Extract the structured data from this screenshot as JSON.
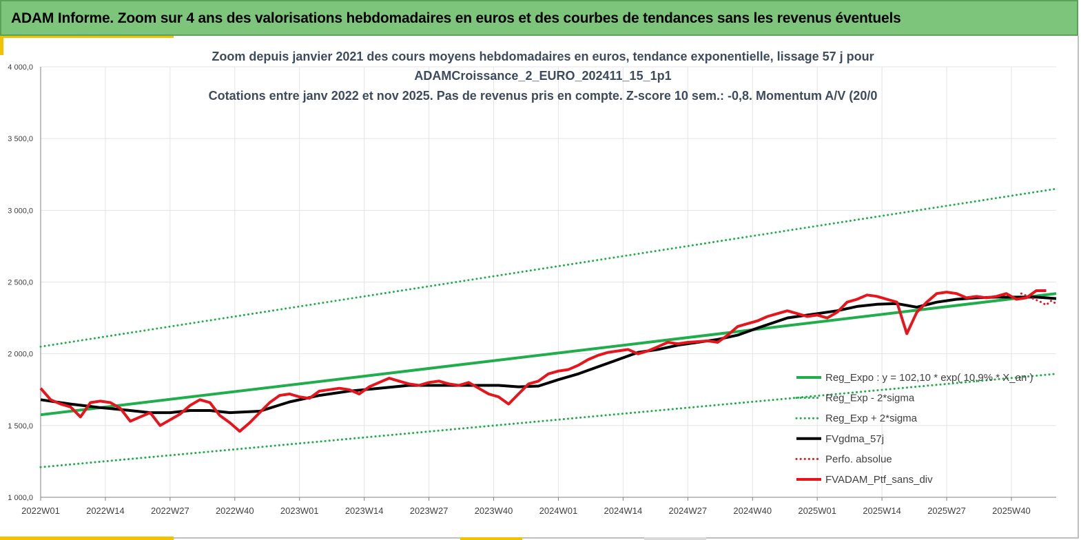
{
  "banner": {
    "title": "ADAM Informe. Zoom sur 4 ans des valorisations hebdomadaires en euros et des courbes de tendances sans les revenus éventuels"
  },
  "colors": {
    "banner_bg": "#7dc57a",
    "green": "#1fae4b",
    "black": "#000000",
    "red": "#e8141b",
    "grid": "#e4e4e4"
  },
  "chart_data": {
    "type": "line",
    "title_lines": [
      "Zoom depuis janvier 2021 des cours moyens hebdomadaires  en euros, tendance exponentielle, lissage 57 j pour",
      "ADAMCroissance_2_EURO_202411_15_1p1",
      "Cotations  entre janv 2022 et nov 2025. Pas de revenus pris en compte. Z-score 10 sem.: -0,8. Momentum A/V (20/0"
    ],
    "x_ticks": [
      "2022W01",
      "2022W14",
      "2022W27",
      "2022W40",
      "2023W01",
      "2023W14",
      "2023W27",
      "2023W40",
      "2024W01",
      "2024W14",
      "2024W27",
      "2024W40",
      "2025W01",
      "2025W14",
      "2025W27",
      "2025W40"
    ],
    "y_ticks": [
      "1 000,0",
      "1 500,0",
      "2 000,0",
      "2 500,0",
      "3 000,0",
      "3 500,0",
      "4 000,0"
    ],
    "ylim": [
      1000,
      4000
    ],
    "n_weeks": 204,
    "grid": true,
    "legend_position": "bottom-right",
    "series": [
      {
        "name": "Reg_Expo : y = 102,10 * exp( 10,9% * X_an )",
        "color": "#1fae4b",
        "style": "solid",
        "x": [
          0,
          204
        ],
        "values": [
          1575,
          2420
        ]
      },
      {
        "name": "Reg_Exp - 2*sigma",
        "color": "#1fae4b",
        "style": "dotted",
        "x": [
          0,
          204
        ],
        "values": [
          1210,
          1860
        ]
      },
      {
        "name": "Reg_Exp + 2*sigma",
        "color": "#1fae4b",
        "style": "dotted",
        "x": [
          0,
          204
        ],
        "values": [
          2050,
          3150
        ]
      },
      {
        "name": "FVgdma_57j",
        "color": "#000000",
        "style": "solid",
        "x": [
          0,
          6,
          12,
          18,
          22,
          26,
          30,
          34,
          38,
          44,
          50,
          56,
          62,
          68,
          74,
          80,
          86,
          92,
          96,
          100,
          104,
          108,
          112,
          116,
          120,
          124,
          128,
          132,
          136,
          140,
          144,
          150,
          156,
          160,
          164,
          168,
          172,
          176,
          180,
          184,
          188,
          192,
          196,
          200,
          204
        ],
        "values": [
          1680,
          1650,
          1625,
          1605,
          1590,
          1590,
          1605,
          1605,
          1590,
          1600,
          1665,
          1710,
          1740,
          1760,
          1780,
          1780,
          1780,
          1780,
          1770,
          1775,
          1820,
          1860,
          1910,
          1960,
          2010,
          2030,
          2060,
          2080,
          2100,
          2130,
          2180,
          2250,
          2280,
          2300,
          2330,
          2345,
          2350,
          2325,
          2360,
          2380,
          2390,
          2395,
          2395,
          2395,
          2385
        ]
      },
      {
        "name": "Perfo. absolue",
        "color": "#e8141b",
        "style": "dotted",
        "x": [
          197,
          199,
          201,
          202,
          203,
          204
        ],
        "values": [
          2420,
          2390,
          2360,
          2340,
          2370,
          2350
        ]
      },
      {
        "name": "FVADAM_Ptf_sans_div",
        "color": "#e8141b",
        "style": "solid",
        "x": [
          0,
          2,
          4,
          6,
          8,
          10,
          12,
          14,
          16,
          18,
          20,
          22,
          24,
          26,
          28,
          30,
          32,
          34,
          36,
          38,
          40,
          42,
          44,
          46,
          48,
          50,
          52,
          54,
          56,
          58,
          60,
          62,
          64,
          66,
          68,
          70,
          72,
          74,
          76,
          78,
          80,
          82,
          84,
          86,
          88,
          90,
          92,
          94,
          96,
          98,
          100,
          102,
          104,
          106,
          108,
          110,
          112,
          114,
          116,
          118,
          120,
          122,
          124,
          126,
          128,
          130,
          132,
          134,
          136,
          138,
          140,
          142,
          144,
          146,
          148,
          150,
          152,
          154,
          156,
          158,
          160,
          162,
          164,
          166,
          168,
          170,
          172,
          174,
          176,
          178,
          180,
          182,
          184,
          186,
          188,
          190,
          192,
          194,
          196,
          198,
          200,
          202
        ],
        "values": [
          1760,
          1680,
          1650,
          1630,
          1560,
          1660,
          1670,
          1660,
          1620,
          1530,
          1560,
          1590,
          1500,
          1540,
          1580,
          1640,
          1680,
          1660,
          1570,
          1520,
          1460,
          1520,
          1590,
          1660,
          1710,
          1720,
          1700,
          1690,
          1740,
          1750,
          1760,
          1750,
          1720,
          1770,
          1800,
          1830,
          1810,
          1790,
          1780,
          1800,
          1810,
          1790,
          1780,
          1800,
          1760,
          1720,
          1700,
          1650,
          1720,
          1790,
          1810,
          1860,
          1880,
          1890,
          1920,
          1960,
          1990,
          2010,
          2020,
          2030,
          2000,
          2020,
          2050,
          2080,
          2070,
          2080,
          2085,
          2090,
          2080,
          2130,
          2190,
          2210,
          2230,
          2260,
          2280,
          2300,
          2280,
          2260,
          2270,
          2250,
          2290,
          2360,
          2380,
          2410,
          2400,
          2380,
          2360,
          2140,
          2290,
          2360,
          2420,
          2430,
          2420,
          2390,
          2400,
          2390,
          2400,
          2420,
          2380,
          2390,
          2440,
          2440
        ]
      }
    ]
  }
}
